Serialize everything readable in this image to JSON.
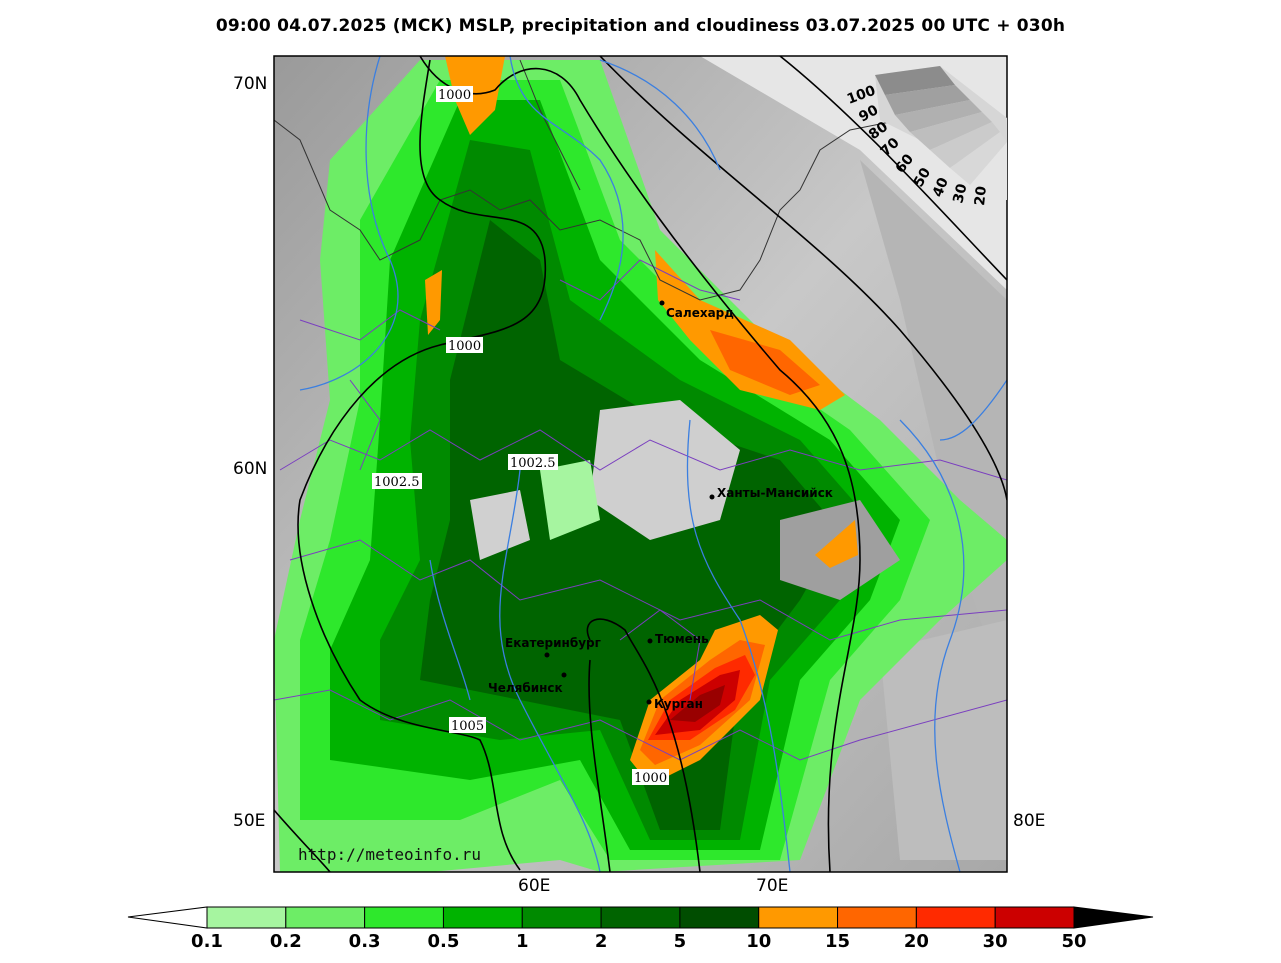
{
  "title": "09:00 04.07.2025 (МСК) MSLP, precipitation and cloudiness 03.07.2025 00 UTC + 030h",
  "axis": {
    "lat_labels": [
      "70N",
      "60N",
      "50E"
    ],
    "lon_labels_bottom": [
      "60E",
      "70E"
    ],
    "right_label": "80E"
  },
  "watermark": "http://meteoinfo.ru",
  "cities": [
    {
      "name": "Салехард"
    },
    {
      "name": "Ханты-Мансийск"
    },
    {
      "name": "Екатеринбург"
    },
    {
      "name": "Тюмень"
    },
    {
      "name": "Челябинск"
    },
    {
      "name": "Курган"
    }
  ],
  "isobar_labels": [
    "1000",
    "1000",
    "1002.5",
    "1002.5",
    "1005",
    "1000"
  ],
  "cloudiness_scale": [
    "100",
    "90",
    "80",
    "70",
    "60",
    "50",
    "40",
    "30",
    "20"
  ],
  "precip_colorbar": {
    "labels": [
      "0.1",
      "0.2",
      "0.3",
      "0.5",
      "1",
      "2",
      "5",
      "10",
      "15",
      "20",
      "30",
      "50"
    ],
    "colors": [
      "#a6f5a0",
      "#6ded66",
      "#2ee82c",
      "#00b300",
      "#008a00",
      "#006400",
      "#004d00",
      "#ff9900",
      "#ff6600",
      "#ff2a00",
      "#cc0000",
      "#990000"
    ],
    "under_color": "#ffffff",
    "over_color": "#000000"
  }
}
